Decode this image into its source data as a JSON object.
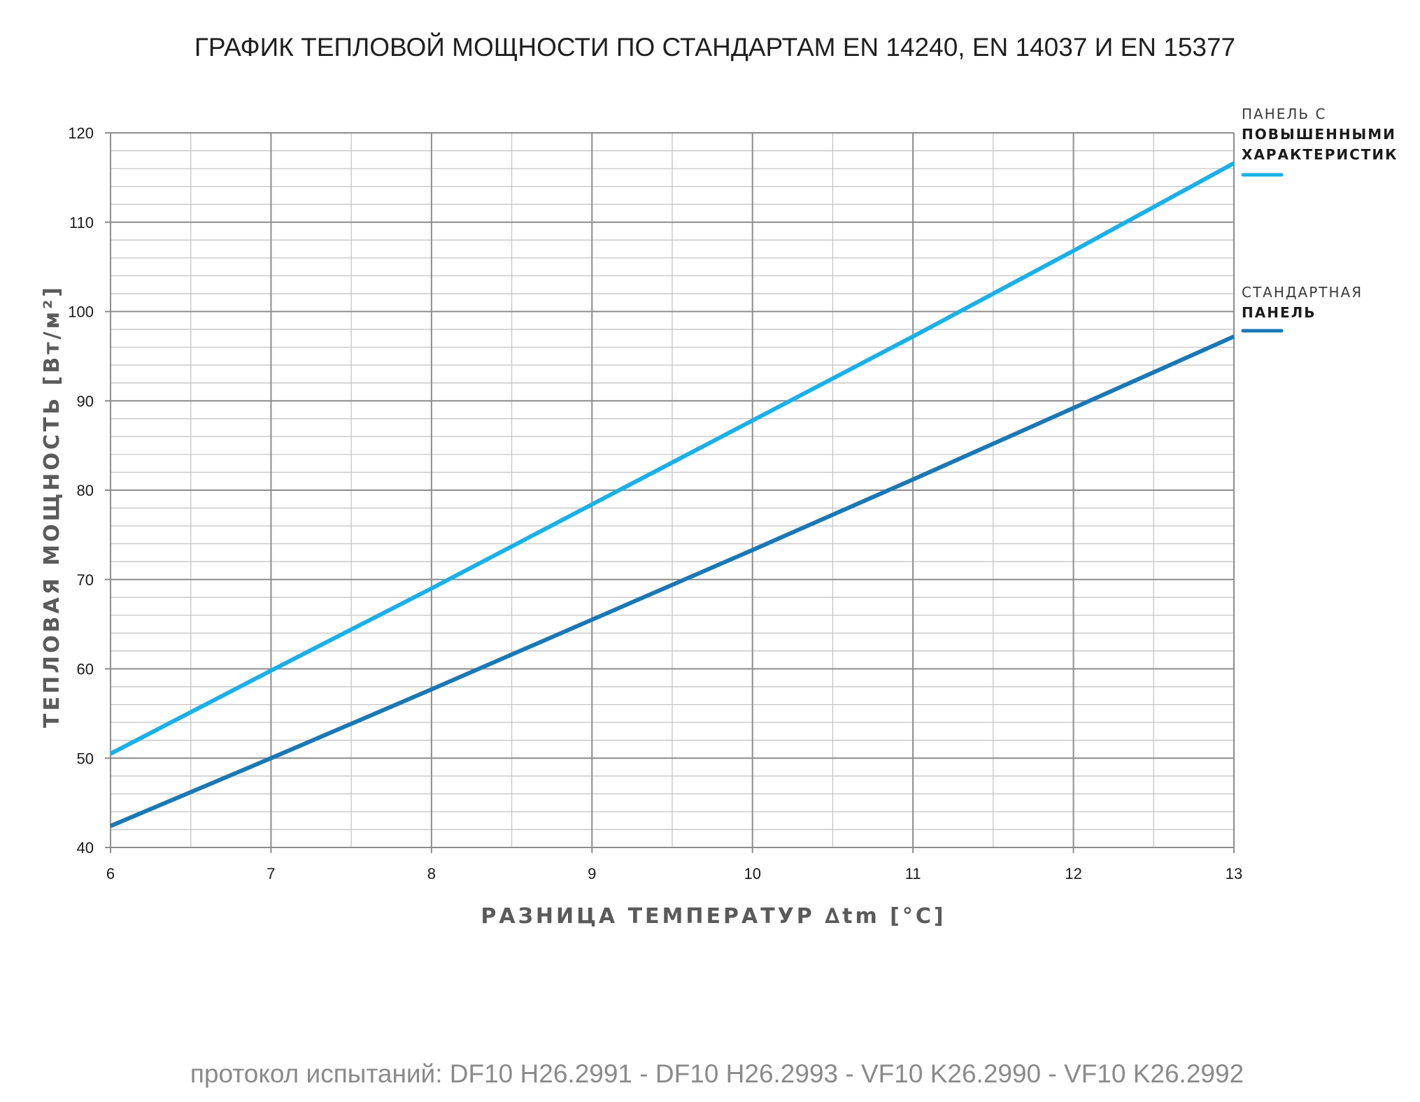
{
  "chart_data": {
    "type": "line",
    "title": "ГРАФИК ТЕПЛОВОЙ МОЩНОСТИ ПО СТАНДАРТАМ EN 14240, EN 14037 И EN 15377",
    "xlabel": "РАЗНИЦА ТЕМПЕРАТУР ∆tm [°C]",
    "ylabel": "ТЕПЛОВАЯ МОЩНОСТЬ [Вт/м²]",
    "xlim": [
      6,
      13
    ],
    "ylim": [
      40,
      120
    ],
    "x_ticks": [
      6,
      7,
      8,
      9,
      10,
      11,
      12,
      13
    ],
    "y_ticks": [
      40,
      50,
      60,
      70,
      80,
      90,
      100,
      110,
      120
    ],
    "grid": true,
    "legend_position": "right",
    "series": [
      {
        "name_line1": "ПАНЕЛЬ С",
        "name_line2": "ПОВЫШЕННЫМИ",
        "name_line3": "ХАРАКТЕРИСТИК",
        "color": "#1ab0e8",
        "x": [
          6,
          7,
          8,
          9,
          10,
          11,
          12,
          13
        ],
        "values": [
          50.5,
          59.8,
          69.0,
          78.4,
          87.8,
          97.2,
          106.8,
          116.6
        ]
      },
      {
        "name_line1": "СТАНДАРТНАЯ",
        "name_line2": "ПАНЕЛЬ",
        "color": "#1a78b4",
        "x": [
          6,
          7,
          8,
          9,
          10,
          11,
          12,
          13
        ],
        "values": [
          42.4,
          50.0,
          57.7,
          65.5,
          73.3,
          81.2,
          89.2,
          97.2
        ]
      }
    ]
  },
  "footer": "протокол испытаний: DF10 H26.2991 - DF10 H26.2993 - VF10 K26.2990 - VF10 K26.2992"
}
